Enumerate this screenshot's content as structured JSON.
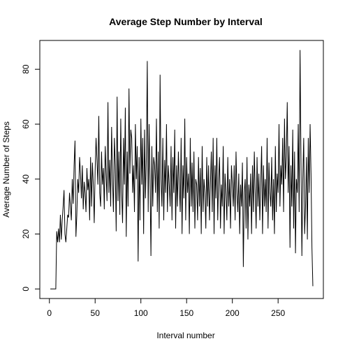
{
  "chart_data": {
    "type": "line",
    "title": "Average Step Number by Interval",
    "xlabel": "Interval number",
    "ylabel": "Average Number of Steps",
    "color": "#000000",
    "x": [
      1,
      2,
      3,
      4,
      5,
      6,
      7,
      8,
      9,
      10,
      11,
      12,
      13,
      14,
      15,
      16,
      17,
      18,
      19,
      20,
      21,
      22,
      23,
      24,
      25,
      26,
      27,
      28,
      29,
      30,
      31,
      32,
      33,
      34,
      35,
      36,
      37,
      38,
      39,
      40,
      41,
      42,
      43,
      44,
      45,
      46,
      47,
      48,
      49,
      50,
      51,
      52,
      53,
      54,
      55,
      56,
      57,
      58,
      59,
      60,
      61,
      62,
      63,
      64,
      65,
      66,
      67,
      68,
      69,
      70,
      71,
      72,
      73,
      74,
      75,
      76,
      77,
      78,
      79,
      80,
      81,
      82,
      83,
      84,
      85,
      86,
      87,
      88,
      89,
      90,
      91,
      92,
      93,
      94,
      95,
      96,
      97,
      98,
      99,
      100,
      101,
      102,
      103,
      104,
      105,
      106,
      107,
      108,
      109,
      110,
      111,
      112,
      113,
      114,
      115,
      116,
      117,
      118,
      119,
      120,
      121,
      122,
      123,
      124,
      125,
      126,
      127,
      128,
      129,
      130,
      131,
      132,
      133,
      134,
      135,
      136,
      137,
      138,
      139,
      140,
      141,
      142,
      143,
      144,
      145,
      146,
      147,
      148,
      149,
      150,
      151,
      152,
      153,
      154,
      155,
      156,
      157,
      158,
      159,
      160,
      161,
      162,
      163,
      164,
      165,
      166,
      167,
      168,
      169,
      170,
      171,
      172,
      173,
      174,
      175,
      176,
      177,
      178,
      179,
      180,
      181,
      182,
      183,
      184,
      185,
      186,
      187,
      188,
      189,
      190,
      191,
      192,
      193,
      194,
      195,
      196,
      197,
      198,
      199,
      200,
      201,
      202,
      203,
      204,
      205,
      206,
      207,
      208,
      209,
      210,
      211,
      212,
      213,
      214,
      215,
      216,
      217,
      218,
      219,
      220,
      221,
      222,
      223,
      224,
      225,
      226,
      227,
      228,
      229,
      230,
      231,
      232,
      233,
      234,
      235,
      236,
      237,
      238,
      239,
      240,
      241,
      242,
      243,
      244,
      245,
      246,
      247,
      248,
      249,
      250,
      251,
      252,
      253,
      254,
      255,
      256,
      257,
      258,
      259,
      260,
      261,
      262,
      263,
      264,
      265,
      266,
      267,
      268,
      269,
      270,
      271,
      272,
      273,
      274,
      275,
      276,
      277,
      278,
      279,
      280,
      281,
      282,
      283,
      284,
      285,
      286,
      287,
      288
    ],
    "values": [
      0,
      0,
      0,
      0,
      0,
      0,
      0,
      21,
      17,
      22,
      17,
      27,
      18,
      25,
      30,
      36,
      20,
      17,
      22,
      27,
      26,
      35,
      30,
      25,
      40,
      31,
      45,
      54,
      19,
      27,
      40,
      35,
      48,
      42,
      33,
      45,
      29,
      39,
      35,
      28,
      44,
      36,
      40,
      25,
      48,
      30,
      46,
      38,
      24,
      43,
      55,
      47,
      38,
      63,
      35,
      30,
      50,
      38,
      44,
      29,
      52,
      42,
      32,
      68,
      35,
      47,
      30,
      59,
      40,
      28,
      55,
      45,
      21,
      70,
      32,
      50,
      27,
      62,
      35,
      24,
      55,
      38,
      66,
      19,
      50,
      30,
      73,
      42,
      58,
      55,
      35,
      45,
      28,
      60,
      40,
      52,
      10,
      48,
      25,
      62,
      38,
      55,
      20,
      58,
      33,
      48,
      83,
      28,
      60,
      40,
      12,
      52,
      30,
      48,
      45,
      35,
      62,
      28,
      50,
      22,
      78,
      40,
      30,
      55,
      25,
      47,
      35,
      60,
      28,
      45,
      38,
      30,
      52,
      25,
      48,
      35,
      58,
      22,
      45,
      30,
      50,
      38,
      28,
      55,
      20,
      45,
      33,
      62,
      25,
      48,
      35,
      42,
      20,
      55,
      30,
      46,
      28,
      50,
      22,
      40,
      38,
      25,
      48,
      30,
      44,
      20,
      52,
      28,
      40,
      35,
      22,
      48,
      30,
      45,
      25,
      38,
      50,
      28,
      55,
      20,
      45,
      33,
      55,
      25,
      40,
      48,
      22,
      38,
      30,
      52,
      20,
      42,
      35,
      25,
      48,
      30,
      40,
      22,
      45,
      38,
      30,
      45,
      25,
      50,
      35,
      28,
      42,
      20,
      38,
      30,
      46,
      8,
      35,
      40,
      22,
      48,
      18,
      38,
      30,
      42,
      20,
      45,
      28,
      50,
      35,
      22,
      48,
      30,
      42,
      25,
      38,
      52,
      20,
      45,
      30,
      40,
      28,
      55,
      22,
      46,
      35,
      30,
      48,
      25,
      40,
      20,
      52,
      28,
      42,
      35,
      60,
      30,
      45,
      38,
      55,
      28,
      62,
      40,
      48,
      68,
      35,
      52,
      15,
      45,
      30,
      58,
      22,
      50,
      13,
      40,
      35,
      60,
      28,
      87,
      48,
      12,
      40,
      55,
      20,
      30,
      48,
      18,
      55,
      35,
      60,
      42,
      15,
      1
    ],
    "xlim": [
      -10.48,
      299.48
    ],
    "xticks": [
      0,
      50,
      100,
      150,
      200,
      250
    ],
    "ylim": [
      -3.48,
      90.48
    ],
    "yticks": [
      0,
      20,
      40,
      60,
      80
    ]
  }
}
